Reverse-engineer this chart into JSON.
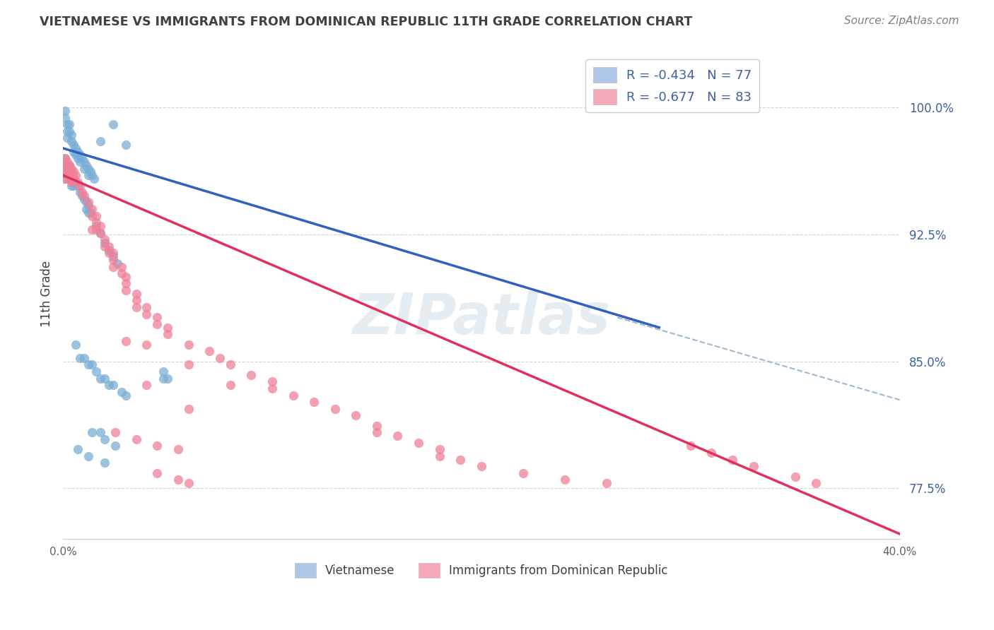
{
  "title": "VIETNAMESE VS IMMIGRANTS FROM DOMINICAN REPUBLIC 11TH GRADE CORRELATION CHART",
  "source": "Source: ZipAtlas.com",
  "ylabel": "11th Grade",
  "ytick_labels": [
    "100.0%",
    "92.5%",
    "85.0%",
    "77.5%"
  ],
  "ytick_values": [
    1.0,
    0.925,
    0.85,
    0.775
  ],
  "x_min": 0.0,
  "x_max": 0.4,
  "y_min": 0.745,
  "y_max": 1.035,
  "legend_entries": [
    {
      "label": "R = -0.434   N = 77",
      "color": "#aec6e8"
    },
    {
      "label": "R = -0.677   N = 83",
      "color": "#f4a8b8"
    }
  ],
  "bottom_legend": [
    "Vietnamese",
    "Immigrants from Dominican Republic"
  ],
  "blue_scatter": [
    [
      0.001,
      0.998
    ],
    [
      0.001,
      0.994
    ],
    [
      0.002,
      0.99
    ],
    [
      0.002,
      0.986
    ],
    [
      0.002,
      0.982
    ],
    [
      0.003,
      0.99
    ],
    [
      0.003,
      0.986
    ],
    [
      0.004,
      0.984
    ],
    [
      0.004,
      0.98
    ],
    [
      0.005,
      0.978
    ],
    [
      0.005,
      0.974
    ],
    [
      0.006,
      0.976
    ],
    [
      0.006,
      0.972
    ],
    [
      0.007,
      0.974
    ],
    [
      0.007,
      0.97
    ],
    [
      0.008,
      0.972
    ],
    [
      0.008,
      0.968
    ],
    [
      0.009,
      0.97
    ],
    [
      0.01,
      0.968
    ],
    [
      0.01,
      0.964
    ],
    [
      0.011,
      0.966
    ],
    [
      0.012,
      0.964
    ],
    [
      0.012,
      0.96
    ],
    [
      0.013,
      0.962
    ],
    [
      0.014,
      0.96
    ],
    [
      0.015,
      0.958
    ],
    [
      0.001,
      0.97
    ],
    [
      0.001,
      0.966
    ],
    [
      0.001,
      0.962
    ],
    [
      0.001,
      0.958
    ],
    [
      0.002,
      0.966
    ],
    [
      0.002,
      0.962
    ],
    [
      0.003,
      0.966
    ],
    [
      0.003,
      0.962
    ],
    [
      0.003,
      0.958
    ],
    [
      0.004,
      0.962
    ],
    [
      0.004,
      0.958
    ],
    [
      0.004,
      0.954
    ],
    [
      0.005,
      0.958
    ],
    [
      0.005,
      0.954
    ],
    [
      0.006,
      0.956
    ],
    [
      0.007,
      0.954
    ],
    [
      0.008,
      0.95
    ],
    [
      0.009,
      0.948
    ],
    [
      0.01,
      0.946
    ],
    [
      0.011,
      0.944
    ],
    [
      0.011,
      0.94
    ],
    [
      0.012,
      0.942
    ],
    [
      0.012,
      0.938
    ],
    [
      0.013,
      0.938
    ],
    [
      0.016,
      0.93
    ],
    [
      0.018,
      0.926
    ],
    [
      0.02,
      0.92
    ],
    [
      0.022,
      0.916
    ],
    [
      0.024,
      0.912
    ],
    [
      0.026,
      0.908
    ],
    [
      0.018,
      0.98
    ],
    [
      0.024,
      0.99
    ],
    [
      0.03,
      0.978
    ],
    [
      0.006,
      0.86
    ],
    [
      0.008,
      0.852
    ],
    [
      0.01,
      0.852
    ],
    [
      0.012,
      0.848
    ],
    [
      0.014,
      0.848
    ],
    [
      0.016,
      0.844
    ],
    [
      0.018,
      0.84
    ],
    [
      0.02,
      0.84
    ],
    [
      0.022,
      0.836
    ],
    [
      0.024,
      0.836
    ],
    [
      0.028,
      0.832
    ],
    [
      0.03,
      0.83
    ],
    [
      0.014,
      0.808
    ],
    [
      0.018,
      0.808
    ],
    [
      0.02,
      0.804
    ],
    [
      0.025,
      0.8
    ],
    [
      0.007,
      0.798
    ],
    [
      0.012,
      0.794
    ],
    [
      0.02,
      0.79
    ],
    [
      0.048,
      0.844
    ],
    [
      0.05,
      0.84
    ],
    [
      0.048,
      0.84
    ]
  ],
  "pink_scatter": [
    [
      0.001,
      0.97
    ],
    [
      0.001,
      0.966
    ],
    [
      0.001,
      0.962
    ],
    [
      0.001,
      0.958
    ],
    [
      0.002,
      0.968
    ],
    [
      0.002,
      0.964
    ],
    [
      0.002,
      0.96
    ],
    [
      0.003,
      0.966
    ],
    [
      0.003,
      0.962
    ],
    [
      0.003,
      0.958
    ],
    [
      0.004,
      0.964
    ],
    [
      0.004,
      0.96
    ],
    [
      0.004,
      0.956
    ],
    [
      0.005,
      0.962
    ],
    [
      0.005,
      0.958
    ],
    [
      0.006,
      0.96
    ],
    [
      0.007,
      0.956
    ],
    [
      0.008,
      0.954
    ],
    [
      0.009,
      0.95
    ],
    [
      0.01,
      0.948
    ],
    [
      0.012,
      0.944
    ],
    [
      0.014,
      0.94
    ],
    [
      0.014,
      0.936
    ],
    [
      0.016,
      0.936
    ],
    [
      0.016,
      0.932
    ],
    [
      0.016,
      0.928
    ],
    [
      0.018,
      0.93
    ],
    [
      0.018,
      0.926
    ],
    [
      0.02,
      0.922
    ],
    [
      0.02,
      0.918
    ],
    [
      0.022,
      0.918
    ],
    [
      0.022,
      0.914
    ],
    [
      0.024,
      0.914
    ],
    [
      0.024,
      0.91
    ],
    [
      0.024,
      0.906
    ],
    [
      0.028,
      0.906
    ],
    [
      0.028,
      0.902
    ],
    [
      0.03,
      0.9
    ],
    [
      0.03,
      0.896
    ],
    [
      0.03,
      0.892
    ],
    [
      0.035,
      0.89
    ],
    [
      0.035,
      0.886
    ],
    [
      0.035,
      0.882
    ],
    [
      0.04,
      0.882
    ],
    [
      0.04,
      0.878
    ],
    [
      0.045,
      0.876
    ],
    [
      0.045,
      0.872
    ],
    [
      0.05,
      0.87
    ],
    [
      0.05,
      0.866
    ],
    [
      0.06,
      0.86
    ],
    [
      0.07,
      0.856
    ],
    [
      0.075,
      0.852
    ],
    [
      0.08,
      0.848
    ],
    [
      0.09,
      0.842
    ],
    [
      0.1,
      0.838
    ],
    [
      0.1,
      0.834
    ],
    [
      0.11,
      0.83
    ],
    [
      0.12,
      0.826
    ],
    [
      0.13,
      0.822
    ],
    [
      0.14,
      0.818
    ],
    [
      0.15,
      0.812
    ],
    [
      0.15,
      0.808
    ],
    [
      0.16,
      0.806
    ],
    [
      0.17,
      0.802
    ],
    [
      0.18,
      0.798
    ],
    [
      0.18,
      0.794
    ],
    [
      0.19,
      0.792
    ],
    [
      0.2,
      0.788
    ],
    [
      0.22,
      0.784
    ],
    [
      0.24,
      0.78
    ],
    [
      0.26,
      0.778
    ],
    [
      0.03,
      0.862
    ],
    [
      0.04,
      0.86
    ],
    [
      0.06,
      0.848
    ],
    [
      0.08,
      0.836
    ],
    [
      0.025,
      0.808
    ],
    [
      0.035,
      0.804
    ],
    [
      0.045,
      0.8
    ],
    [
      0.055,
      0.798
    ],
    [
      0.045,
      0.784
    ],
    [
      0.055,
      0.78
    ],
    [
      0.06,
      0.778
    ],
    [
      0.3,
      0.8
    ],
    [
      0.31,
      0.796
    ],
    [
      0.32,
      0.792
    ],
    [
      0.33,
      0.788
    ],
    [
      0.35,
      0.782
    ],
    [
      0.36,
      0.778
    ],
    [
      0.014,
      0.928
    ],
    [
      0.04,
      0.836
    ],
    [
      0.06,
      0.822
    ]
  ],
  "blue_line": {
    "x": [
      0.0,
      0.285
    ],
    "y": [
      0.976,
      0.87
    ]
  },
  "pink_line": {
    "x": [
      0.0,
      0.4
    ],
    "y": [
      0.96,
      0.748
    ]
  },
  "blue_dashed": {
    "x": [
      0.265,
      0.42
    ],
    "y": [
      0.876,
      0.82
    ]
  },
  "scatter_color_blue": "#7aaed4",
  "scatter_color_pink": "#f08098",
  "line_color_blue": "#3060c0",
  "line_color_pink": "#e03060",
  "dashed_color": "#a0b8d0",
  "background_color": "#ffffff",
  "grid_color": "#c8c8c8",
  "title_color": "#404040",
  "axis_label_color": "#4060a0",
  "watermark": "ZIPatlas"
}
